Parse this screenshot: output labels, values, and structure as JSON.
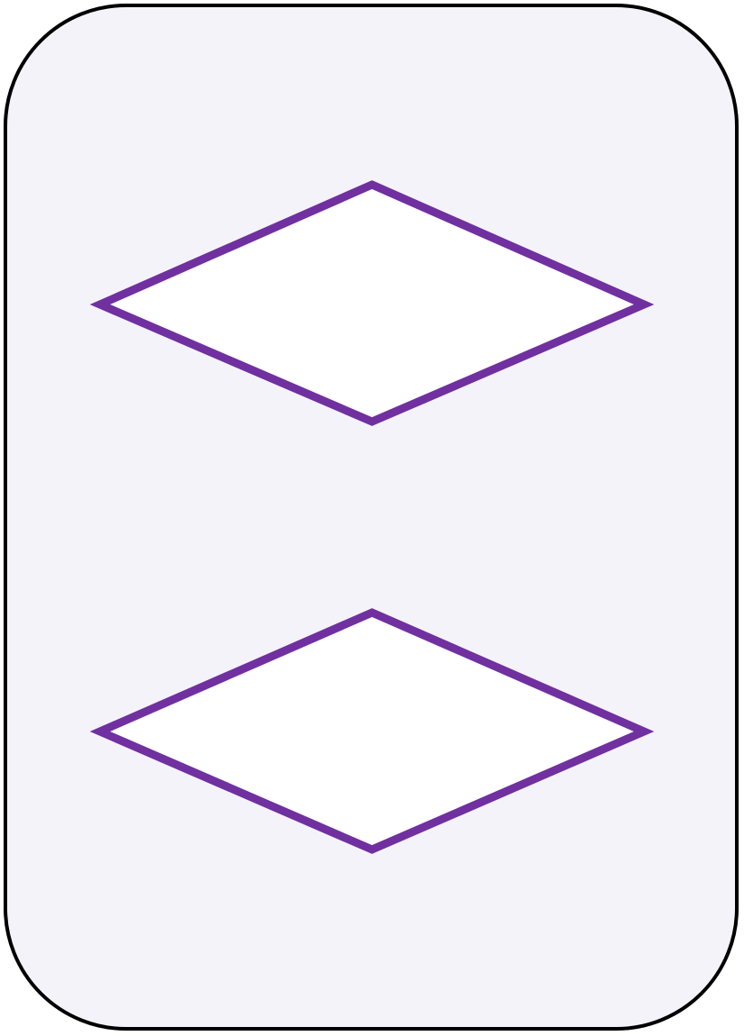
{
  "card": {
    "count": 2,
    "shape": "diamond",
    "fill": "empty",
    "color": "#7030a0",
    "shape_fill": "#ffffff",
    "background": "#f4f3f9",
    "border_color": "#000000"
  }
}
